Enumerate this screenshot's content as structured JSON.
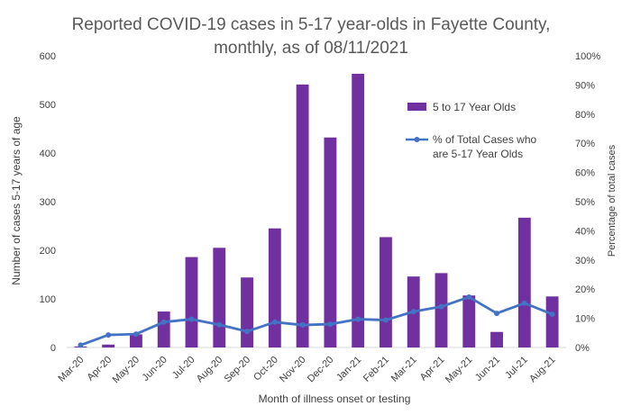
{
  "chart_data": {
    "type": "bar",
    "title_lines": [
      "Reported COVID-19 cases in 5-17 year-olds in Fayette County,",
      "monthly, as of 08/11/2021"
    ],
    "xlabel": "Month of illness onset or testing",
    "ylabel": "Number of cases 5-17 years of age",
    "y2label": "Percentage of total cases",
    "categories": [
      "Mar-20",
      "Apr-20",
      "May-20",
      "Jun-20",
      "Jul-20",
      "Aug-20",
      "Sep-20",
      "Oct-20",
      "Nov-20",
      "Dec-20",
      "Jan-21",
      "Feb-21",
      "Mar-21",
      "Apr-21",
      "May-21",
      "Jun-21",
      "Jul-21",
      "Aug-21"
    ],
    "ylim": [
      0,
      600
    ],
    "yticks": [
      "0",
      "100",
      "200",
      "300",
      "400",
      "500",
      "600"
    ],
    "y2lim": [
      0,
      100
    ],
    "y2ticks": [
      "0%",
      "10%",
      "20%",
      "30%",
      "40%",
      "50%",
      "60%",
      "70%",
      "80%",
      "90%",
      "100%"
    ],
    "series": [
      {
        "name": "5 to 17 Year Olds",
        "type": "bar",
        "color": "#7030A0",
        "values": [
          2,
          6,
          27,
          74,
          186,
          205,
          144,
          245,
          541,
          432,
          563,
          227,
          146,
          153,
          107,
          32,
          267,
          105
        ]
      },
      {
        "name_lines": [
          "% of Total Cases who",
          "are 5-17 Year Olds"
        ],
        "type": "line",
        "axis": "right",
        "color": "#4472C4",
        "values": [
          0.8,
          4.3,
          4.6,
          8.7,
          9.7,
          7.8,
          5.5,
          8.7,
          7.7,
          8.0,
          9.7,
          9.4,
          12.3,
          14.0,
          17.3,
          11.7,
          15.2,
          11.4
        ]
      }
    ],
    "grid": false,
    "legend": "top-right"
  }
}
